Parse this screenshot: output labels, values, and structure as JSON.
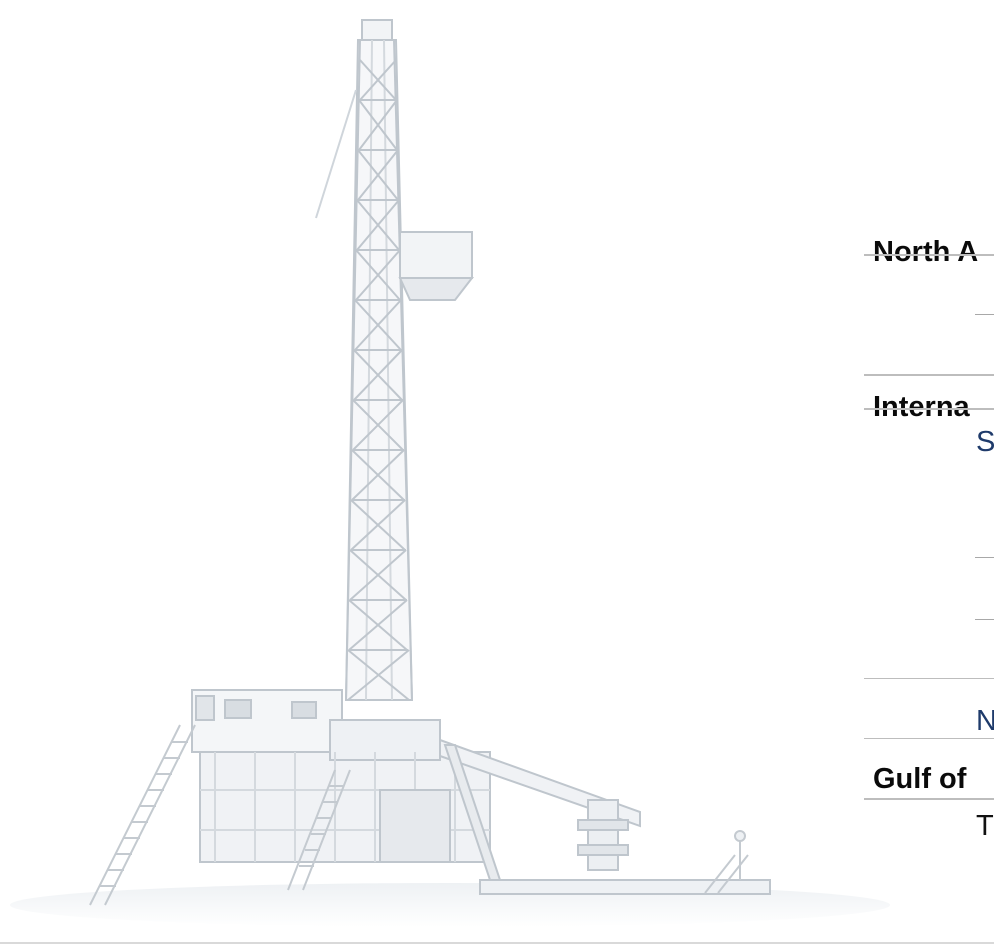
{
  "sections": {
    "north_america": {
      "label": "North A"
    },
    "international": {
      "label": "Interna"
    },
    "gulf": {
      "label": "Gulf of"
    }
  },
  "sub_items": {
    "s": {
      "label": "S"
    },
    "n": {
      "label": "N"
    },
    "t": {
      "label": "T"
    }
  },
  "colors": {
    "accent_blue": "#1f3b6b",
    "rule_gray": "#bdbdbd",
    "rig_white": "#f2f4f6",
    "rig_shadow": "#c9cfd6"
  }
}
